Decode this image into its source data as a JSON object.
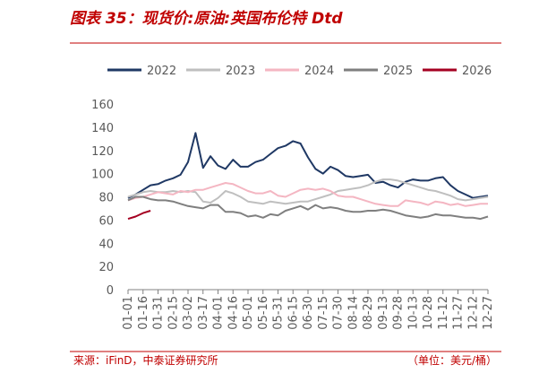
{
  "chart_data": {
    "type": "line",
    "title": "图表 35：现货价:原油:英国布伦特 Dtd",
    "source": "来源：iFinD，中泰证券研究所",
    "unit": "（单位：美元/桶）",
    "categories": [
      "01-01",
      null,
      "01-16",
      null,
      "01-31",
      null,
      "02-15",
      null,
      "03-02",
      null,
      "03-17",
      null,
      "04-01",
      null,
      "04-16",
      null,
      "05-01",
      null,
      "05-16",
      null,
      "05-31",
      null,
      "06-15",
      null,
      "06-30",
      null,
      "07-15",
      null,
      "07-30",
      null,
      "08-14",
      null,
      "08-29",
      null,
      "09-13",
      null,
      "09-28",
      null,
      "10-13",
      null,
      "10-28",
      null,
      "11-12",
      null,
      "11-27",
      null,
      "12-12",
      null,
      "12-27"
    ],
    "ylim": [
      0,
      160
    ],
    "yticks": [
      0,
      20,
      40,
      60,
      80,
      100,
      120,
      140,
      160
    ],
    "series": [
      {
        "name": "2022",
        "color": "#1f3864",
        "values": [
          79,
          82,
          86,
          90,
          91,
          94,
          96,
          99,
          110,
          135,
          105,
          115,
          107,
          104,
          112,
          106,
          106,
          110,
          112,
          117,
          122,
          124,
          128,
          126,
          114,
          104,
          100,
          106,
          103,
          98,
          97,
          98,
          99,
          92,
          93,
          90,
          88,
          93,
          95,
          94,
          94,
          96,
          97,
          90,
          85,
          82,
          79,
          80,
          81
        ]
      },
      {
        "name": "2023",
        "color": "#bfbfbf",
        "values": [
          80,
          82,
          84,
          85,
          84,
          84,
          85,
          84,
          85,
          84,
          76,
          75,
          79,
          85,
          83,
          80,
          76,
          75,
          74,
          76,
          75,
          74,
          75,
          76,
          76,
          78,
          80,
          82,
          85,
          86,
          87,
          88,
          90,
          93,
          95,
          95,
          94,
          92,
          90,
          88,
          86,
          85,
          83,
          81,
          78,
          77,
          78,
          79,
          80
        ]
      },
      {
        "name": "2024",
        "color": "#f4b6c2",
        "values": [
          77,
          79,
          80,
          82,
          84,
          83,
          82,
          85,
          84,
          86,
          86,
          88,
          90,
          92,
          91,
          88,
          85,
          83,
          83,
          85,
          81,
          80,
          83,
          86,
          87,
          86,
          87,
          85,
          81,
          80,
          80,
          78,
          76,
          74,
          73,
          72,
          72,
          77,
          76,
          75,
          73,
          76,
          75,
          73,
          74,
          72,
          73,
          74,
          74
        ]
      },
      {
        "name": "2025",
        "color": "#7f7f7f",
        "values": [
          77,
          80,
          80,
          78,
          77,
          77,
          76,
          74,
          72,
          71,
          70,
          73,
          73,
          67,
          67,
          66,
          63,
          64,
          62,
          65,
          64,
          68,
          70,
          72,
          69,
          73,
          70,
          71,
          70,
          68,
          67,
          67,
          68,
          68,
          69,
          68,
          66,
          64,
          63,
          62,
          63,
          65,
          64,
          64,
          63,
          62,
          62,
          61,
          63
        ]
      },
      {
        "name": "2026",
        "color": "#a50021",
        "values": [
          61,
          63,
          66,
          68,
          null,
          null,
          null,
          null,
          null,
          null,
          null,
          null,
          null,
          null,
          null,
          null,
          null,
          null,
          null,
          null,
          null,
          null,
          null,
          null,
          null,
          null,
          null,
          null,
          null,
          null,
          null,
          null,
          null,
          null,
          null,
          null,
          null,
          null,
          null,
          null,
          null,
          null,
          null,
          null,
          null,
          null,
          null,
          null,
          null
        ]
      }
    ]
  }
}
